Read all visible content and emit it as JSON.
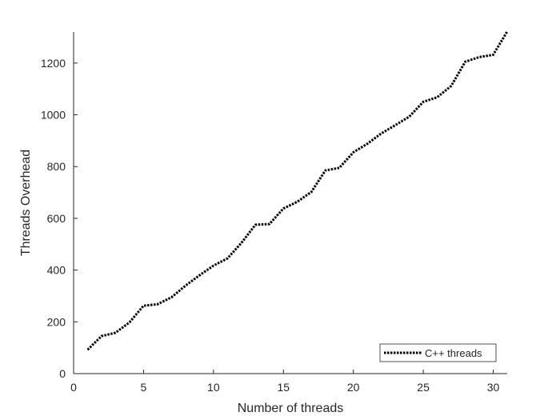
{
  "chart_data": {
    "type": "line",
    "xlabel": "Number of threads",
    "ylabel": "Threads Overhead",
    "xlim": [
      0,
      31
    ],
    "ylim": [
      0,
      1320
    ],
    "xticks": [
      0,
      5,
      10,
      15,
      20,
      25,
      30
    ],
    "yticks": [
      0,
      200,
      400,
      600,
      800,
      1000,
      1200
    ],
    "grid": false,
    "legend_position": "bottom-right",
    "series": [
      {
        "name": "C++ threads",
        "color": "#000000",
        "line_style": "dotted",
        "x": [
          1,
          2,
          3,
          4,
          5,
          6,
          7,
          8,
          9,
          10,
          11,
          12,
          13,
          14,
          15,
          16,
          17,
          18,
          19,
          20,
          21,
          22,
          23,
          24,
          25,
          26,
          27,
          28,
          29,
          30,
          31
        ],
        "y": [
          92,
          145,
          158,
          198,
          262,
          268,
          295,
          340,
          380,
          417,
          445,
          505,
          575,
          578,
          638,
          664,
          702,
          785,
          795,
          855,
          888,
          928,
          960,
          993,
          1050,
          1068,
          1112,
          1205,
          1223,
          1232,
          1322
        ]
      }
    ]
  }
}
